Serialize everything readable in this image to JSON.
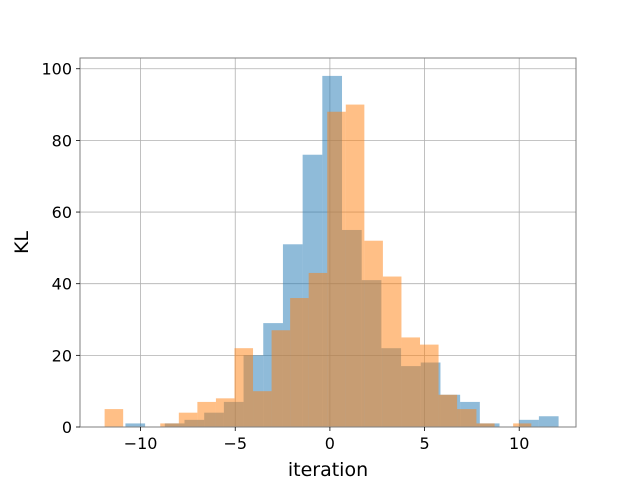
{
  "chart_data": {
    "type": "bar",
    "histogram": true,
    "title": "",
    "xlabel": "iteration",
    "ylabel": "KL",
    "xlim": [
      -13.2,
      13.0
    ],
    "ylim": [
      0,
      103
    ],
    "xticks": [
      -10,
      -5,
      0,
      5,
      10
    ],
    "xtick_labels": [
      "−10",
      "−5",
      "0",
      "5",
      "10"
    ],
    "yticks": [
      0,
      20,
      40,
      60,
      80,
      100
    ],
    "ytick_labels": [
      "0",
      "20",
      "40",
      "60",
      "80",
      "100"
    ],
    "grid": true,
    "legend": null,
    "series": [
      {
        "color": "#1f77b4",
        "alpha": 0.5,
        "bin_edges": [
          -10.8,
          -9.76,
          -8.72,
          -7.68,
          -6.64,
          -5.6,
          -4.56,
          -3.52,
          -2.48,
          -1.44,
          -0.4,
          0.64,
          1.68,
          2.72,
          3.76,
          4.8,
          5.84,
          6.88,
          7.92,
          8.96,
          10.0,
          11.04,
          12.08
        ],
        "counts": [
          1,
          0,
          1,
          2,
          4,
          7,
          20,
          29,
          51,
          76,
          98,
          55,
          41,
          22,
          17,
          18,
          9,
          7,
          1,
          0,
          2,
          3
        ]
      },
      {
        "color": "#ff7f0e",
        "alpha": 0.5,
        "bin_edges": [
          -11.9,
          -10.92,
          -9.94,
          -8.96,
          -7.98,
          -7.0,
          -6.02,
          -5.04,
          -4.06,
          -3.08,
          -2.1,
          -1.12,
          -0.14,
          0.84,
          1.82,
          2.8,
          3.78,
          4.76,
          5.74,
          6.72,
          7.74,
          8.7,
          9.68,
          10.64
        ],
        "counts": [
          5,
          0,
          0,
          1,
          4,
          7,
          8,
          22,
          10,
          27,
          36,
          43,
          88,
          90,
          52,
          42,
          25,
          23,
          9,
          5,
          1,
          0,
          1
        ]
      }
    ]
  }
}
